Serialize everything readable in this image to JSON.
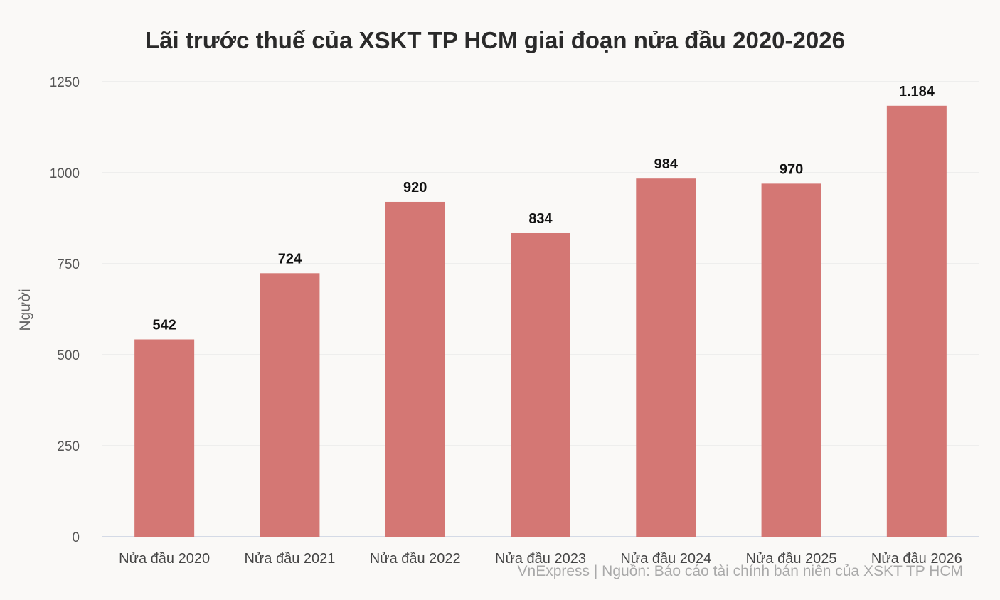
{
  "chart_data": {
    "type": "bar",
    "title": "Lãi trước thuế của XSKT TP HCM giai đoạn nửa đầu 2020-2026",
    "ylabel": "Người",
    "xlabel": "",
    "categories": [
      "Nửa đầu 2020",
      "Nửa đầu 2021",
      "Nửa đầu 2022",
      "Nửa đầu 2023",
      "Nửa đầu 2024",
      "Nửa đầu 2025",
      "Nửa đầu 2026"
    ],
    "values": [
      542,
      724,
      920,
      834,
      984,
      970,
      1184
    ],
    "value_labels": [
      "542",
      "724",
      "920",
      "834",
      "984",
      "970",
      "1.184"
    ],
    "ylim": [
      0,
      1250
    ],
    "yticks": [
      0,
      250,
      500,
      750,
      1000,
      1250
    ],
    "grid": true,
    "bar_color": "#d47774",
    "source": "VnExpress | Nguồn: Báo cáo tài chính bán niên của XSKT TP HCM"
  }
}
